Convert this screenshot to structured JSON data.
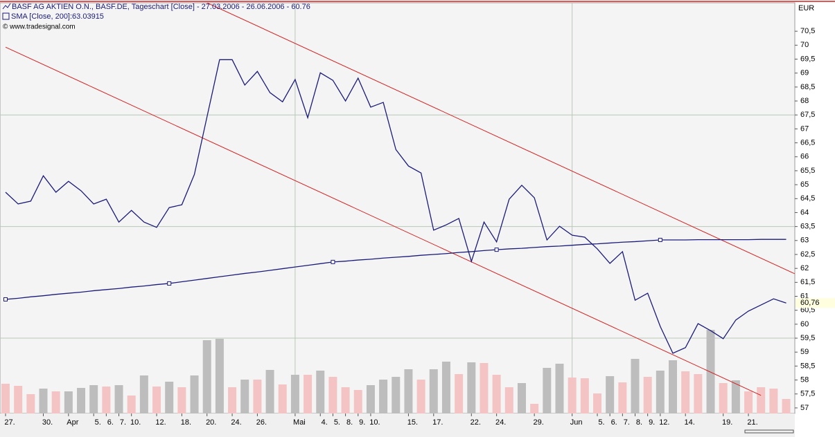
{
  "chart_data": {
    "type": "line",
    "unit_label": "EUR",
    "copyright": "© www.tradesignal.com",
    "categories": [
      "27.",
      null,
      null,
      "30.",
      null,
      "Apr",
      null,
      "5.",
      "6.",
      "7.",
      "10.",
      null,
      "12.",
      null,
      "18.",
      null,
      "20.",
      null,
      "24.",
      null,
      "26.",
      null,
      null,
      "Mai",
      null,
      "4.",
      "5.",
      "8.",
      "9.",
      "10.",
      null,
      null,
      "15.",
      null,
      "17.",
      null,
      null,
      "22.",
      null,
      "24.",
      null,
      null,
      "29.",
      null,
      null,
      "Jun",
      null,
      "5.",
      "6.",
      "7.",
      "8.",
      "9.",
      "12.",
      null,
      "14.",
      null,
      null,
      "19.",
      null,
      "21.",
      null,
      null,
      null
    ],
    "series": [
      {
        "name": "BASF AG AKTIEN O.N., BASF.DE, Tageschart [Close] - 27.03.2006 - 26.06.2006 - 60.76",
        "color": "#1a1a7a",
        "values": [
          64.73,
          64.31,
          64.41,
          65.32,
          64.73,
          65.12,
          64.78,
          64.31,
          64.48,
          63.66,
          64.08,
          63.66,
          63.47,
          64.18,
          64.28,
          65.37,
          67.43,
          69.48,
          69.48,
          68.57,
          69.06,
          68.3,
          67.97,
          68.77,
          67.4,
          69.01,
          68.74,
          68.0,
          68.82,
          67.78,
          67.95,
          66.26,
          65.67,
          65.42,
          63.37,
          63.56,
          63.79,
          62.25,
          63.66,
          62.95,
          64.48,
          64.98,
          64.53,
          63.02,
          63.51,
          63.19,
          63.12,
          62.7,
          62.18,
          62.6,
          60.86,
          61.11,
          59.92,
          58.96,
          59.16,
          60.02,
          59.77,
          59.48,
          60.15,
          60.47,
          60.69,
          60.91,
          60.76
        ]
      },
      {
        "name": "SMA [Close, 200]:63.03915",
        "color": "#1a1a7a",
        "marker_every": 13,
        "values": [
          60.89,
          60.93,
          60.98,
          61.02,
          61.07,
          61.11,
          61.15,
          61.2,
          61.24,
          61.28,
          61.33,
          61.37,
          61.42,
          61.46,
          61.52,
          61.58,
          61.64,
          61.7,
          61.76,
          61.82,
          61.87,
          61.93,
          61.99,
          62.05,
          62.11,
          62.17,
          62.23,
          62.26,
          62.3,
          62.33,
          62.37,
          62.4,
          62.43,
          62.47,
          62.5,
          62.53,
          62.57,
          62.6,
          62.64,
          62.67,
          62.7,
          62.72,
          62.75,
          62.78,
          62.8,
          62.83,
          62.86,
          62.88,
          62.91,
          62.94,
          62.96,
          62.99,
          63.02,
          63.02,
          63.02,
          63.03,
          63.03,
          63.03,
          63.03,
          63.03,
          63.04,
          63.04,
          63.04
        ]
      }
    ],
    "volume": {
      "values": [
        43,
        40,
        28,
        36,
        32,
        32,
        37,
        41,
        39,
        41,
        26,
        55,
        39,
        46,
        38,
        55,
        106,
        108,
        38,
        49,
        49,
        63,
        42,
        56,
        56,
        62,
        53,
        38,
        34,
        41,
        49,
        53,
        64,
        49,
        64,
        75,
        57,
        74,
        73,
        56,
        38,
        44,
        14,
        66,
        72,
        52,
        51,
        29,
        54,
        45,
        79,
        53,
        62,
        77,
        61,
        57,
        121,
        44,
        48,
        32,
        38,
        36,
        21
      ],
      "colors": [
        "#f4c4c4",
        "#f4c4c4",
        "#f4c4c4",
        "#bdbdbd",
        "#f4c4c4",
        "#bdbdbd",
        "#bdbdbd",
        "#bdbdbd",
        "#f4c4c4",
        "#bdbdbd",
        "#f4c4c4",
        "#bdbdbd",
        "#f4c4c4",
        "#bdbdbd",
        "#f4c4c4",
        "#bdbdbd",
        "#bdbdbd",
        "#bdbdbd",
        "#f4c4c4",
        "#bdbdbd",
        "#f4c4c4",
        "#bdbdbd",
        "#f4c4c4",
        "#bdbdbd",
        "#f4c4c4",
        "#bdbdbd",
        "#f4c4c4",
        "#f4c4c4",
        "#f4c4c4",
        "#bdbdbd",
        "#bdbdbd",
        "#bdbdbd",
        "#bdbdbd",
        "#f4c4c4",
        "#bdbdbd",
        "#bdbdbd",
        "#f4c4c4",
        "#bdbdbd",
        "#f4c4c4",
        "#f4c4c4",
        "#f4c4c4",
        "#bdbdbd",
        "#f4c4c4",
        "#bdbdbd",
        "#bdbdbd",
        "#f4c4c4",
        "#f4c4c4",
        "#f4c4c4",
        "#bdbdbd",
        "#f4c4c4",
        "#bdbdbd",
        "#f4c4c4",
        "#bdbdbd",
        "#bdbdbd",
        "#f4c4c4",
        "#f4c4c4",
        "#bdbdbd",
        "#f4c4c4",
        "#bdbdbd",
        "#f4c4c4",
        "#f4c4c4",
        "#f4c4c4",
        "#f4c4c4"
      ]
    },
    "trendlines": [
      {
        "color": "#d42020",
        "x": [
          16,
          62.67
        ],
        "values": [
          71.52,
          61.81
        ]
      },
      {
        "color": "#d42020",
        "x": [
          0,
          60
        ],
        "values": [
          69.93,
          57.45
        ]
      }
    ],
    "last_label": {
      "value": 60.76,
      "label": "60,76"
    },
    "ylim": [
      56.8,
      71.52
    ],
    "yticks": [
      57,
      {
        "value": 57.5,
        "label": "57,5"
      },
      58,
      {
        "value": 58.5,
        "label": "58,5"
      },
      59,
      {
        "value": 59.5,
        "label": "59,5"
      },
      60,
      {
        "value": 60.5,
        "label": "60,5"
      },
      61,
      {
        "value": 61.5,
        "label": "61,5"
      },
      62,
      {
        "value": 62.5,
        "label": "62,5"
      },
      63,
      {
        "value": 63.5,
        "label": "63,5"
      },
      64,
      {
        "value": 64.5,
        "label": "64,5"
      },
      65,
      {
        "value": 65.5,
        "label": "65,5"
      },
      66,
      {
        "value": 66.5,
        "label": "66,5"
      },
      67,
      {
        "value": 67.5,
        "label": "67,5"
      },
      68,
      {
        "value": 68.5,
        "label": "68,5"
      },
      69,
      {
        "value": 69.5,
        "label": "69,5"
      },
      70,
      {
        "value": 70.5,
        "label": "70,5"
      }
    ],
    "ygrid": [
      59.5,
      63.5,
      67.5
    ],
    "xgrid": [
      23,
      45
    ]
  }
}
